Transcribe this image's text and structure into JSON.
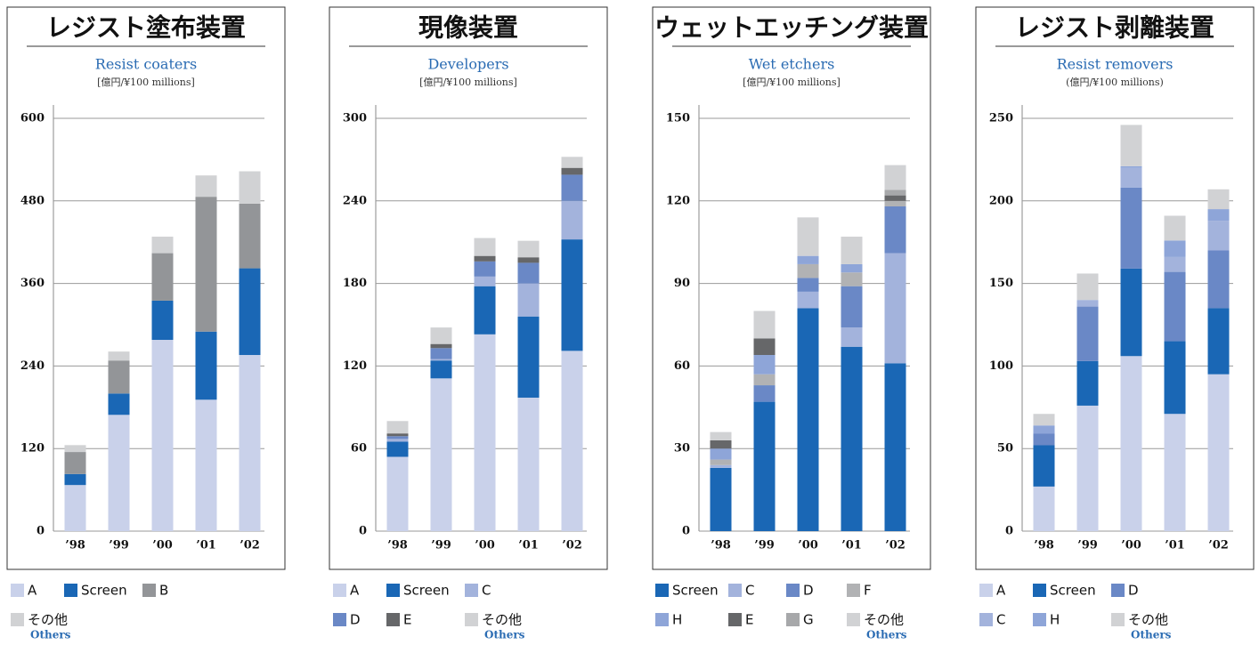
{
  "chart_data": [
    {
      "type": "bar",
      "stacked": true,
      "title": "レジスト塗布装置",
      "subtitle": "Resist coaters",
      "unit": "[億円/¥100 millions]",
      "categories": [
        "’98",
        "’99",
        "’00",
        "’01",
        "’02"
      ],
      "ylim": [
        0,
        600
      ],
      "yticks": [
        0,
        120,
        240,
        360,
        480,
        600
      ],
      "grid": true,
      "others_caption": "Others",
      "series": [
        {
          "name": "A",
          "color": "#c9d1ea",
          "values": [
            67,
            169,
            278,
            191,
            256
          ]
        },
        {
          "name": "Screen",
          "color": "#1a67b5",
          "values": [
            16,
            31,
            57,
            99,
            126
          ]
        },
        {
          "name": "B",
          "color": "#939598",
          "values": [
            32,
            48,
            69,
            196,
            94
          ]
        },
        {
          "name": "その他",
          "color": "#d1d2d4",
          "values": [
            10,
            13,
            24,
            31,
            47
          ]
        }
      ]
    },
    {
      "type": "bar",
      "stacked": true,
      "title": "現像装置",
      "subtitle": "Developers",
      "unit": "[億円/¥100 millions]",
      "categories": [
        "’98",
        "’99",
        "’00",
        "’01",
        "’02"
      ],
      "ylim": [
        0,
        300
      ],
      "yticks": [
        0,
        60,
        120,
        180,
        240,
        300
      ],
      "grid": true,
      "others_caption": "Others",
      "series": [
        {
          "name": "A",
          "color": "#c9d1ea",
          "values": [
            54,
            111,
            143,
            97,
            131
          ]
        },
        {
          "name": "Screen",
          "color": "#1a67b5",
          "values": [
            11,
            13,
            35,
            59,
            81
          ]
        },
        {
          "name": "C",
          "color": "#a3b3dc",
          "values": [
            2,
            1,
            7,
            24,
            28
          ]
        },
        {
          "name": "D",
          "color": "#6a88c6",
          "values": [
            2,
            8,
            11,
            15,
            19
          ]
        },
        {
          "name": "E",
          "color": "#666769",
          "values": [
            2,
            3,
            4,
            4,
            5
          ]
        },
        {
          "name": "その他",
          "color": "#d1d2d4",
          "values": [
            9,
            12,
            13,
            12,
            8
          ]
        }
      ]
    },
    {
      "type": "bar",
      "stacked": true,
      "title": "ウェットエッチング装置",
      "subtitle": "Wet etchers",
      "unit": "[億円/¥100 millions]",
      "categories": [
        "’98",
        "’99",
        "’00",
        "’01",
        "’02"
      ],
      "ylim": [
        0,
        150
      ],
      "yticks": [
        0,
        30,
        60,
        90,
        120,
        150
      ],
      "grid": true,
      "others_caption": "Others",
      "series": [
        {
          "name": "Screen",
          "color": "#1a67b5",
          "values": [
            23,
            47,
            81,
            67,
            61
          ]
        },
        {
          "name": "C",
          "color": "#a3b3dc",
          "values": [
            1,
            0,
            6,
            7,
            40
          ]
        },
        {
          "name": "D",
          "color": "#6a88c6",
          "values": [
            0,
            6,
            5,
            15,
            17
          ]
        },
        {
          "name": "F",
          "color": "#b1b2b4",
          "values": [
            2,
            4,
            5,
            5,
            2
          ]
        },
        {
          "name": "H",
          "color": "#8ea5d8",
          "values": [
            4,
            7,
            3,
            3,
            0
          ]
        },
        {
          "name": "E",
          "color": "#666769",
          "values": [
            3,
            6,
            0,
            0,
            2
          ]
        },
        {
          "name": "G",
          "color": "#a7a8aa",
          "values": [
            0,
            0,
            0,
            0,
            2
          ]
        },
        {
          "name": "その他",
          "color": "#d1d2d4",
          "values": [
            3,
            10,
            14,
            10,
            9
          ]
        }
      ]
    },
    {
      "type": "bar",
      "stacked": true,
      "title": "レジスト剥離装置",
      "subtitle": "Resist removers",
      "unit": "(億円/¥100 millions)",
      "categories": [
        "’98",
        "’99",
        "’00",
        "’01",
        "’02"
      ],
      "ylim": [
        0,
        250
      ],
      "yticks": [
        0,
        50,
        100,
        150,
        200,
        250
      ],
      "grid": true,
      "others_caption": "Others",
      "series": [
        {
          "name": "A",
          "color": "#c9d1ea",
          "values": [
            27,
            76,
            106,
            71,
            95
          ]
        },
        {
          "name": "Screen",
          "color": "#1a67b5",
          "values": [
            25,
            27,
            53,
            44,
            40
          ]
        },
        {
          "name": "D",
          "color": "#6a88c6",
          "values": [
            7,
            33,
            49,
            42,
            35
          ]
        },
        {
          "name": "C",
          "color": "#a3b3dc",
          "values": [
            0,
            4,
            12,
            9,
            18
          ]
        },
        {
          "name": "H",
          "color": "#8ea5d8",
          "values": [
            5,
            0,
            1,
            10,
            7
          ]
        },
        {
          "name": "その他",
          "color": "#d1d2d4",
          "values": [
            7,
            16,
            25,
            15,
            12
          ]
        }
      ]
    }
  ]
}
